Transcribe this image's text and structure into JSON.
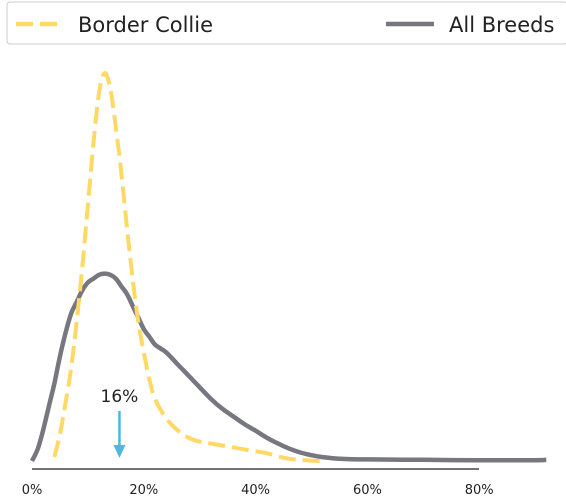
{
  "chart_data": {
    "type": "line",
    "title": "",
    "xlabel": "",
    "ylabel": "",
    "x_tick_labels": [
      "0%",
      "20%",
      "40%",
      "60%",
      "80%"
    ],
    "xlim": [
      0,
      92
    ],
    "ylim": [
      0,
      1
    ],
    "grid": false,
    "legend_position": "top",
    "series": [
      {
        "name": "Border Collie",
        "color": "#FFD966",
        "style": "dashed",
        "x": [
          4,
          5,
          6,
          7,
          8,
          9,
          10,
          11,
          12,
          13,
          14,
          15,
          16,
          17,
          18,
          19,
          20,
          21,
          22,
          24,
          26,
          28,
          30,
          32,
          34,
          36,
          38,
          40,
          42,
          44,
          46,
          48,
          50,
          52
        ],
        "y": [
          0.01,
          0.07,
          0.15,
          0.24,
          0.36,
          0.5,
          0.66,
          0.82,
          0.95,
          1.0,
          0.96,
          0.86,
          0.74,
          0.6,
          0.47,
          0.36,
          0.28,
          0.21,
          0.16,
          0.11,
          0.08,
          0.06,
          0.05,
          0.045,
          0.04,
          0.035,
          0.03,
          0.025,
          0.02,
          0.012,
          0.006,
          0.003,
          0.001,
          0.0
        ]
      },
      {
        "name": "All Breeds",
        "color": "#77777F",
        "style": "solid",
        "x": [
          0,
          1,
          2,
          3,
          4,
          5,
          6,
          7,
          8,
          9,
          10,
          11,
          12,
          13,
          14,
          15,
          16,
          17,
          18,
          19,
          20,
          21,
          22,
          23,
          24,
          26,
          28,
          30,
          32,
          34,
          36,
          38,
          40,
          42,
          44,
          46,
          48,
          50,
          52,
          55,
          60,
          70,
          80,
          90,
          92
        ],
        "y": [
          0.0,
          0.03,
          0.08,
          0.14,
          0.2,
          0.27,
          0.33,
          0.38,
          0.41,
          0.44,
          0.46,
          0.47,
          0.48,
          0.483,
          0.48,
          0.47,
          0.45,
          0.43,
          0.4,
          0.37,
          0.34,
          0.32,
          0.3,
          0.29,
          0.28,
          0.25,
          0.22,
          0.19,
          0.16,
          0.135,
          0.115,
          0.095,
          0.078,
          0.06,
          0.045,
          0.032,
          0.022,
          0.015,
          0.01,
          0.006,
          0.004,
          0.003,
          0.002,
          0.002,
          0.003
        ]
      }
    ],
    "annotations": [
      {
        "text": "16%",
        "x": 16,
        "color": "#4DB8E0"
      }
    ]
  }
}
